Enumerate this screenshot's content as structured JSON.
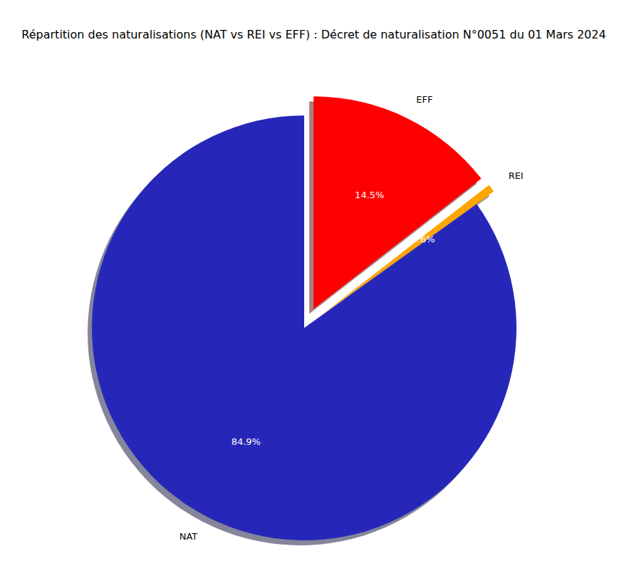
{
  "chart_data": {
    "type": "pie",
    "title": "Répartition des naturalisations (NAT vs REI vs EFF) : Décret de naturalisation N°0051 du 01 Mars 2024",
    "categories": [
      "NAT",
      "REI",
      "EFF"
    ],
    "values": [
      84.9,
      0.6,
      14.5
    ],
    "colors": [
      "#2627b8",
      "#ffa500",
      "#ff0000"
    ],
    "data_labels": true,
    "value_labels": [
      "84.9%",
      "0.6%",
      "14.5%"
    ]
  }
}
